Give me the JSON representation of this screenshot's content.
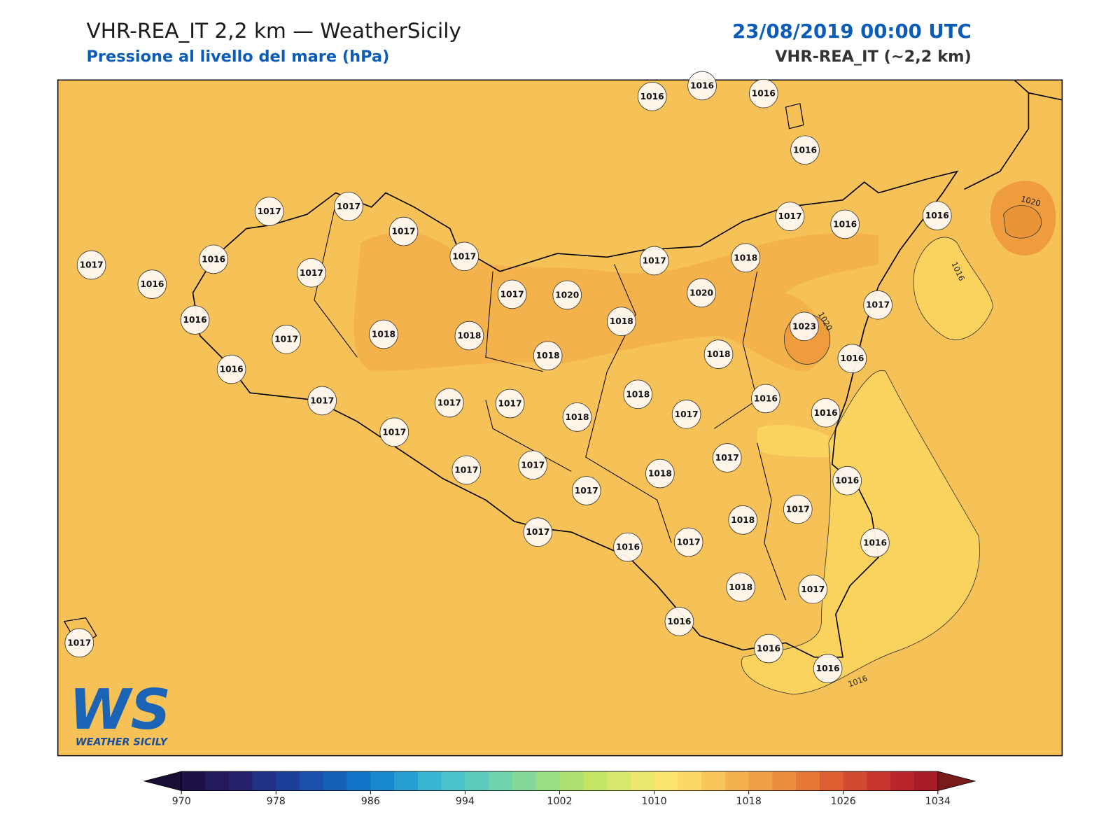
{
  "header": {
    "title": "VHR-REA_IT 2,2 km — WeatherSicily",
    "subtitle": "Pressione al livello del mare (hPa)",
    "datetime": "23/08/2019 00:00 UTC",
    "model": "VHR-REA_IT (~2,2 km)"
  },
  "map": {
    "stations": [
      1016,
      1016,
      1016,
      1016,
      1017,
      1017,
      1017,
      1017,
      1017,
      1016,
      1017,
      1016,
      1016,
      1017,
      1016,
      1018,
      1018,
      1017,
      1020,
      1018,
      1018,
      1017,
      1020,
      1018,
      1017,
      1016,
      1016,
      1017,
      1023,
      1016,
      1018,
      1016,
      1016,
      1018,
      1017,
      1018,
      1017,
      1017,
      1017,
      1017,
      1017,
      1017,
      1017,
      1018,
      1017,
      1016,
      1017,
      1018,
      1017,
      1016,
      1017,
      1016,
      1018,
      1017,
      1016,
      1016,
      1016,
      1017
    ],
    "contour_labels": [
      1020,
      1020,
      1016,
      1016
    ]
  },
  "colorbar": {
    "ticks": [
      970,
      978,
      986,
      994,
      1002,
      1010,
      1018,
      1026,
      1034
    ],
    "colors": [
      "#1d1145",
      "#221a5c",
      "#25236e",
      "#213286",
      "#1c3f9a",
      "#1a4fab",
      "#1760b7",
      "#1274c6",
      "#1888cf",
      "#279ed2",
      "#39b4d1",
      "#4ac2c9",
      "#5ccbbb",
      "#6fd3ab",
      "#84d99a",
      "#98de85",
      "#aee172",
      "#c4e464",
      "#d8e66c",
      "#ece86f",
      "#fbe56e",
      "#fcd867",
      "#f8c65a",
      "#f4b14f",
      "#efa044",
      "#ec8d3c",
      "#e67635",
      "#dd5f31",
      "#d24a2f",
      "#c6362d",
      "#b8262b",
      "#a81c28"
    ],
    "under": "#1a0d33",
    "over": "#7a1b1b"
  },
  "logo": {
    "mark": "WS",
    "text": "WEATHER SICILY"
  }
}
